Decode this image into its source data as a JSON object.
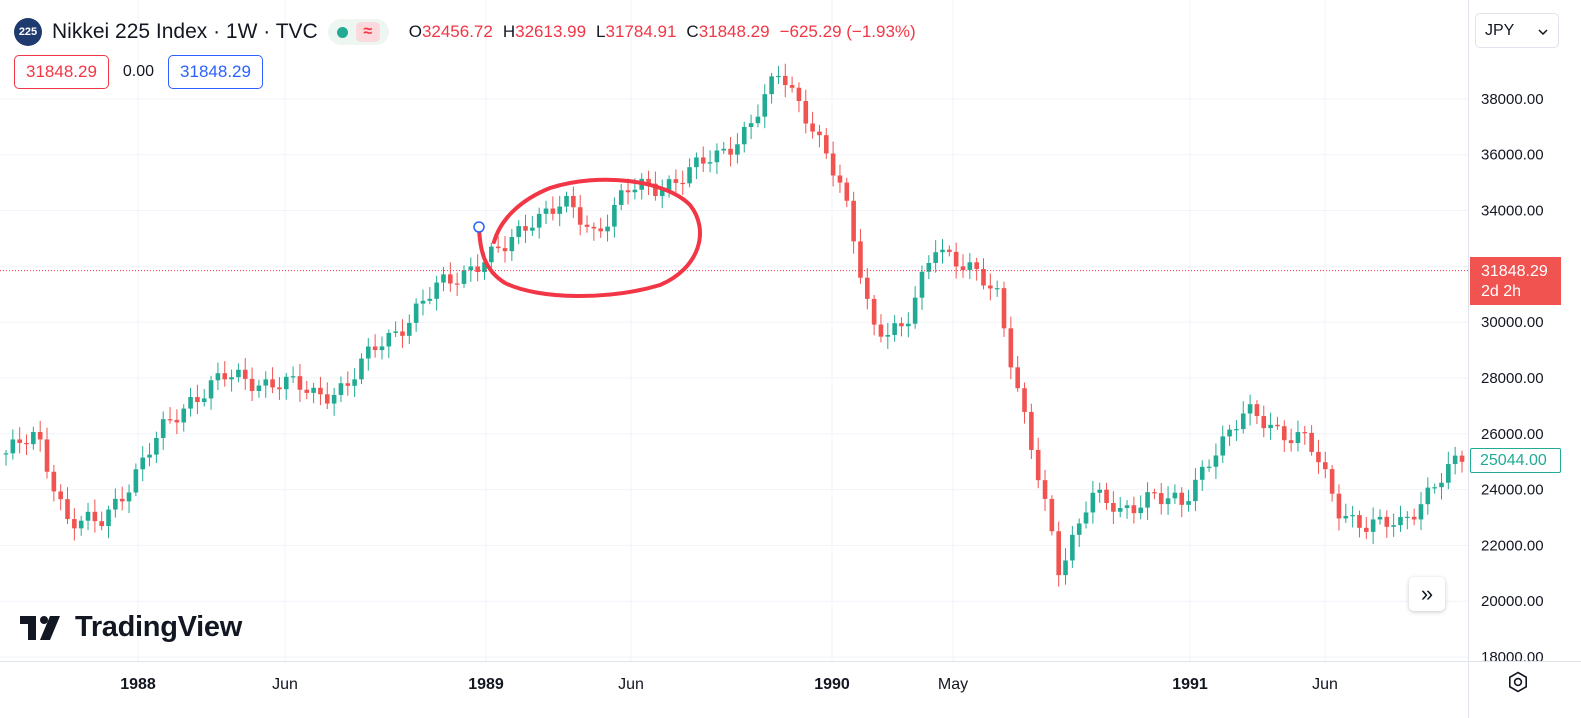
{
  "header": {
    "symbol_badge": "225",
    "title": "Nikkei 225 Index · 1W · TVC",
    "status_wave": "≈",
    "ohlc": {
      "o_label": "O",
      "o_value": "32456.72",
      "h_label": "H",
      "h_value": "32613.99",
      "l_label": "L",
      "l_value": "31784.91",
      "c_label": "C",
      "c_value": "31848.29",
      "change": "−625.29 (−1.93%)"
    },
    "value_boxes": {
      "sell": "31848.29",
      "spread": "0.00",
      "buy": "31848.29"
    }
  },
  "currency": {
    "selected": "JPY"
  },
  "price_tag": {
    "price": "31848.29",
    "countdown": "2d 2h"
  },
  "last_value_tag": "25044.00",
  "logo": {
    "text": "TradingView"
  },
  "scroll_button_glyph": "»",
  "colors": {
    "up": "#22ab94",
    "down": "#f05350",
    "annotation": "#f23645",
    "grid": "#f0f3fa",
    "price_line": "#f23645"
  },
  "chart_data": {
    "type": "candlestick",
    "title": "Nikkei 225 Index · 1W · TVC",
    "ylim": [
      18000,
      39000
    ],
    "y_ticks": [
      18000,
      20000,
      22000,
      24000,
      26000,
      28000,
      30000,
      32000,
      34000,
      36000,
      38000
    ],
    "y_tick_labels": [
      "18000.00",
      "20000.00",
      "22000.00",
      "24000.00",
      "26000.00",
      "28000.00",
      "30000.00",
      "",
      "34000.00",
      "36000.00",
      "38000.00"
    ],
    "x_ticks": [
      "1988",
      "Jun",
      "1989",
      "Jun",
      "1990",
      "May",
      "1991",
      "Jun"
    ],
    "grid": true,
    "current_price": 31848.29,
    "series": [
      {
        "x": "1987-11",
        "close": 25300
      },
      {
        "x": "1987-12",
        "close": 25900
      },
      {
        "x": "1988-01",
        "close": 22900
      },
      {
        "x": "1988-02",
        "close": 22700
      },
      {
        "x": "1988-03",
        "close": 24300
      },
      {
        "x": "1988-04",
        "close": 26000
      },
      {
        "x": "1988-05",
        "close": 27300
      },
      {
        "x": "1988-06",
        "close": 28000
      },
      {
        "x": "1988-07",
        "close": 27900
      },
      {
        "x": "1988-08",
        "close": 27800
      },
      {
        "x": "1988-09",
        "close": 27400
      },
      {
        "x": "1988-10",
        "close": 27700
      },
      {
        "x": "1988-11",
        "close": 29200
      },
      {
        "x": "1988-12",
        "close": 30100
      },
      {
        "x": "1989-01",
        "close": 31300
      },
      {
        "x": "1989-02",
        "close": 32000
      },
      {
        "x": "1989-03",
        "close": 32500
      },
      {
        "x": "1989-04",
        "close": 33800
      },
      {
        "x": "1989-05",
        "close": 34200
      },
      {
        "x": "1989-06",
        "close": 33200
      },
      {
        "x": "1989-07",
        "close": 34700
      },
      {
        "x": "1989-08",
        "close": 34800
      },
      {
        "x": "1989-09",
        "close": 35400
      },
      {
        "x": "1989-10",
        "close": 35900
      },
      {
        "x": "1989-11",
        "close": 37100
      },
      {
        "x": "1989-12",
        "close": 38900
      },
      {
        "x": "1990-01",
        "close": 37200
      },
      {
        "x": "1990-02",
        "close": 34600
      },
      {
        "x": "1990-03",
        "close": 29900
      },
      {
        "x": "1990-04",
        "close": 29600
      },
      {
        "x": "1990-05",
        "close": 32900
      },
      {
        "x": "1990-06",
        "close": 31900
      },
      {
        "x": "1990-07",
        "close": 31000
      },
      {
        "x": "1990-08",
        "close": 26000
      },
      {
        "x": "1990-09",
        "close": 21000
      },
      {
        "x": "1990-10",
        "close": 24000
      },
      {
        "x": "1990-11",
        "close": 23000
      },
      {
        "x": "1990-12",
        "close": 24000
      },
      {
        "x": "1991-01",
        "close": 23300
      },
      {
        "x": "1991-02",
        "close": 25500
      },
      {
        "x": "1991-03",
        "close": 26700
      },
      {
        "x": "1991-04",
        "close": 26200
      },
      {
        "x": "1991-05",
        "close": 25800
      },
      {
        "x": "1991-06",
        "close": 23300
      },
      {
        "x": "1991-07",
        "close": 22700
      },
      {
        "x": "1991-08",
        "close": 22700
      },
      {
        "x": "1991-09",
        "close": 24100
      },
      {
        "x": "1991-10",
        "close": 25044
      }
    ]
  }
}
